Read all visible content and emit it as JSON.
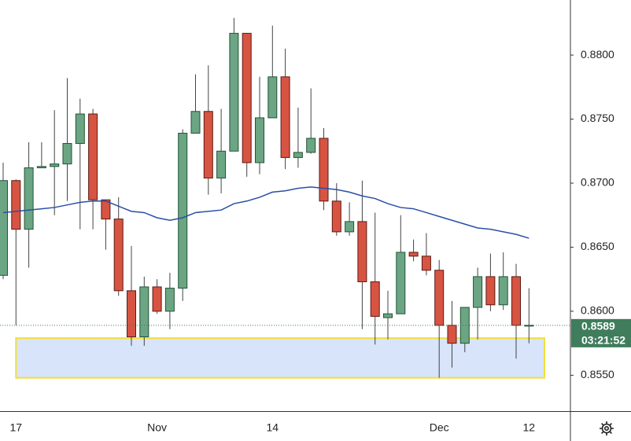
{
  "chart_data": {
    "type": "candlestick",
    "categories": [
      null,
      "17",
      null,
      null,
      null,
      null,
      null,
      null,
      null,
      null,
      null,
      null,
      "Nov",
      null,
      null,
      null,
      null,
      null,
      null,
      null,
      null,
      "14",
      null,
      null,
      null,
      null,
      null,
      null,
      null,
      null,
      null,
      null,
      null,
      null,
      "Dec",
      null,
      null,
      null,
      null,
      null,
      null,
      "12"
    ],
    "open": [
      0.8628,
      0.8702,
      0.8664,
      0.8712,
      0.8713,
      0.8715,
      0.8731,
      0.8754,
      0.8687,
      0.8672,
      0.8616,
      0.858,
      0.8619,
      0.86,
      0.8618,
      0.8739,
      0.8756,
      0.8704,
      0.8725,
      0.8817,
      0.8716,
      0.8751,
      0.8783,
      0.872,
      0.8724,
      0.8735,
      0.8686,
      0.8662,
      0.867,
      0.8623,
      0.8595,
      0.8598,
      0.8646,
      0.8643,
      0.8632,
      0.8589,
      0.8575,
      0.8603,
      0.8627,
      0.8605,
      0.8627,
      0.8589
    ],
    "high": [
      0.8716,
      0.8703,
      0.8732,
      0.8732,
      0.8757,
      0.8782,
      0.8766,
      0.8758,
      0.8687,
      0.8689,
      0.8651,
      0.8627,
      0.8625,
      0.863,
      0.8742,
      0.8785,
      0.8792,
      0.8758,
      0.8829,
      0.8817,
      0.8783,
      0.8823,
      0.8805,
      0.8759,
      0.8774,
      0.8743,
      0.87,
      0.8685,
      0.8702,
      0.8677,
      0.8616,
      0.8675,
      0.8656,
      0.8661,
      0.864,
      0.8608,
      0.8603,
      0.8634,
      0.8645,
      0.8646,
      0.8637,
      0.8618
    ],
    "low": [
      0.8625,
      0.8589,
      0.8634,
      0.8712,
      0.8675,
      0.8686,
      0.8664,
      0.8664,
      0.8648,
      0.8612,
      0.8573,
      0.8573,
      0.8598,
      0.8586,
      0.8608,
      0.8739,
      0.8691,
      0.8692,
      0.8725,
      0.8705,
      0.8707,
      0.8751,
      0.8711,
      0.8712,
      0.8723,
      0.8679,
      0.8659,
      0.8659,
      0.8586,
      0.8574,
      0.8578,
      0.8598,
      0.8639,
      0.8628,
      0.8548,
      0.8556,
      0.8568,
      0.8578,
      0.86,
      0.8601,
      0.8563,
      0.8575
    ],
    "close": [
      0.8702,
      0.8664,
      0.8712,
      0.8713,
      0.8715,
      0.8731,
      0.8754,
      0.8687,
      0.8672,
      0.8616,
      0.858,
      0.8619,
      0.86,
      0.8618,
      0.8739,
      0.8756,
      0.8704,
      0.8725,
      0.8817,
      0.8716,
      0.8751,
      0.8783,
      0.872,
      0.8724,
      0.8735,
      0.8686,
      0.8662,
      0.867,
      0.8623,
      0.8596,
      0.8598,
      0.8646,
      0.8643,
      0.8632,
      0.8589,
      0.8575,
      0.8603,
      0.8627,
      0.8605,
      0.8627,
      0.8589,
      0.8589
    ],
    "up_color": "#6ba583",
    "down_color": "#d75442",
    "ma_values": [
      0.8677,
      0.8678,
      0.8679,
      0.868,
      0.8681,
      0.8683,
      0.8685,
      0.8686,
      0.8686,
      0.8682,
      0.8678,
      0.8677,
      0.8673,
      0.8671,
      0.8673,
      0.8677,
      0.8678,
      0.8679,
      0.8684,
      0.8686,
      0.8689,
      0.8693,
      0.8694,
      0.8696,
      0.8697,
      0.8696,
      0.8695,
      0.8693,
      0.869,
      0.8688,
      0.8684,
      0.8681,
      0.868,
      0.8677,
      0.8674,
      0.8671,
      0.8668,
      0.8665,
      0.8664,
      0.8662,
      0.866,
      0.8657
    ],
    "ma_color": "#2a4ea8",
    "zone": [
      0.8548,
      0.8579
    ],
    "zone_color": "#d8e4fa",
    "zone_border": "#f2df3a",
    "last": 0.8589,
    "countdown": "03:21:52",
    "last_color": "#3f7d5c",
    "ylim": [
      0.8522,
      0.8843
    ],
    "yticks": [
      {
        "value": 0.855,
        "label": "0.8550"
      },
      {
        "value": 0.86,
        "label": "0.8600"
      },
      {
        "value": 0.865,
        "label": "0.8650"
      },
      {
        "value": 0.87,
        "label": "0.8700"
      },
      {
        "value": 0.875,
        "label": "0.8750"
      },
      {
        "value": 0.88,
        "label": "0.8800"
      }
    ],
    "grid": false
  }
}
